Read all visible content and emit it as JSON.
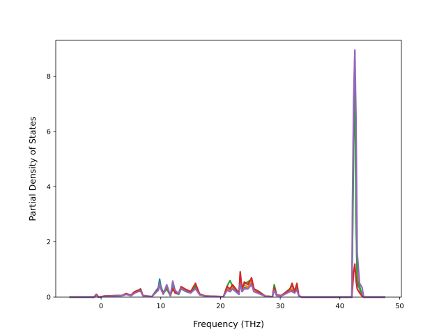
{
  "chart_data": {
    "type": "line",
    "xlabel": "Frequency (THz)",
    "ylabel": "Partial Density of States",
    "xlim": [
      -7.6,
      50.3
    ],
    "ylim": [
      0,
      9.3
    ],
    "x_ticks": [
      0,
      10,
      20,
      30,
      40,
      50
    ],
    "y_ticks": [
      0,
      2,
      4,
      6,
      8
    ],
    "grid": false,
    "legend": "none",
    "colors": [
      "#1f77b4",
      "#ff7f0e",
      "#2ca02c",
      "#d62728",
      "#9467bd"
    ],
    "series": [
      {
        "color": "#1f77b4",
        "x": [
          -5.3,
          -1.2,
          -0.8,
          -0.4,
          0.5,
          2,
          3.5,
          4.2,
          5,
          5.6,
          6.2,
          6.6,
          7,
          8.5,
          9.6,
          9.8,
          10.0,
          10.4,
          11,
          11.6,
          12,
          12.4,
          13,
          13.4,
          14.2,
          15,
          15.8,
          16.5,
          17.5,
          20.5,
          21.1,
          21.6,
          22,
          23.1,
          23.3,
          23.6,
          24,
          24.6,
          25.2,
          25.6,
          26.5,
          27.5,
          28.7,
          29,
          29.4,
          30.2,
          31.6,
          32,
          32.4,
          32.8,
          33.1,
          33.6,
          42,
          42.1,
          42.3,
          42.5,
          42.7,
          42.9,
          43.3,
          43.7,
          44,
          47.6
        ],
        "y": [
          0,
          0,
          0.07,
          0,
          0.03,
          0.04,
          0.05,
          0.1,
          0.05,
          0.15,
          0.2,
          0.25,
          0.05,
          0.02,
          0.35,
          0.65,
          0.4,
          0.15,
          0.3,
          0.05,
          0.35,
          0.15,
          0.1,
          0.3,
          0.2,
          0.15,
          0.35,
          0.1,
          0.03,
          0.02,
          0.3,
          0.2,
          0.3,
          0.1,
          0.6,
          0.2,
          0.35,
          0.3,
          0.5,
          0.2,
          0.15,
          0.03,
          0.02,
          0.3,
          0.05,
          0.05,
          0.2,
          0.25,
          0.15,
          0.3,
          0.05,
          0,
          0,
          2.0,
          6.2,
          8.7,
          3.0,
          0.5,
          0.3,
          0.05,
          0,
          0
        ]
      },
      {
        "color": "#ff7f0e",
        "x": [
          -5.3,
          -1.2,
          -0.8,
          -0.4,
          0.5,
          2,
          3.5,
          4.2,
          5,
          5.6,
          6.2,
          6.6,
          7,
          8.5,
          9.6,
          9.8,
          10.0,
          10.4,
          11,
          11.6,
          12,
          12.4,
          13,
          13.4,
          14.2,
          15,
          15.8,
          16.5,
          17.5,
          20.5,
          21.1,
          21.6,
          22,
          23.1,
          23.3,
          23.6,
          24,
          24.6,
          25.2,
          25.6,
          26.5,
          27.5,
          28.7,
          29,
          29.4,
          30.2,
          31.6,
          32,
          32.4,
          32.8,
          33.1,
          33.6,
          42,
          42.1,
          42.3,
          42.5,
          42.7,
          42.9,
          43.3,
          43.7,
          44,
          47.6
        ],
        "y": [
          0,
          0,
          0.09,
          0,
          0.04,
          0.05,
          0.06,
          0.12,
          0.06,
          0.18,
          0.24,
          0.3,
          0.06,
          0.02,
          0.3,
          0.5,
          0.35,
          0.12,
          0.35,
          0.06,
          0.4,
          0.18,
          0.12,
          0.35,
          0.25,
          0.18,
          0.45,
          0.12,
          0.04,
          0.02,
          0.35,
          0.25,
          0.35,
          0.12,
          0.85,
          0.25,
          0.45,
          0.35,
          0.6,
          0.25,
          0.18,
          0.04,
          0.02,
          0.4,
          0.06,
          0.06,
          0.25,
          0.3,
          0.2,
          0.45,
          0.06,
          0,
          0,
          2.5,
          7.0,
          8.9,
          3.5,
          0.8,
          0.35,
          0.06,
          0,
          0
        ]
      },
      {
        "color": "#2ca02c",
        "x": [
          -5.3,
          -1.2,
          -0.8,
          -0.4,
          0.5,
          2,
          3.5,
          4.2,
          5,
          5.6,
          6.2,
          6.6,
          7,
          8.5,
          9.6,
          9.8,
          10.0,
          10.4,
          11,
          11.6,
          12,
          12.4,
          13,
          13.4,
          14.2,
          15,
          15.8,
          16.5,
          17.5,
          20.5,
          21.1,
          21.6,
          22,
          23.1,
          23.3,
          23.6,
          24,
          24.6,
          25.2,
          25.6,
          26.5,
          27.5,
          28.7,
          29,
          29.4,
          30.2,
          31.6,
          32,
          32.4,
          32.8,
          33.1,
          33.6,
          42,
          42.1,
          42.3,
          42.5,
          42.7,
          42.9,
          43.3,
          43.7,
          44,
          47.6
        ],
        "y": [
          0,
          0,
          0.08,
          0,
          0.03,
          0.05,
          0.06,
          0.11,
          0.05,
          0.16,
          0.22,
          0.3,
          0.05,
          0.02,
          0.3,
          0.55,
          0.35,
          0.12,
          0.3,
          0.05,
          0.45,
          0.2,
          0.1,
          0.3,
          0.22,
          0.15,
          0.4,
          0.1,
          0.03,
          0.02,
          0.4,
          0.6,
          0.4,
          0.15,
          0.7,
          0.3,
          0.5,
          0.55,
          0.65,
          0.3,
          0.2,
          0.03,
          0.02,
          0.45,
          0.08,
          0.05,
          0.3,
          0.4,
          0.25,
          0.4,
          0.05,
          0,
          0,
          1.8,
          5.5,
          8.2,
          2.8,
          0.6,
          0.4,
          0.05,
          0,
          0
        ]
      },
      {
        "color": "#d62728",
        "x": [
          -5.3,
          -1.2,
          -0.8,
          -0.4,
          0.5,
          2,
          3.5,
          4.2,
          5,
          5.6,
          6.2,
          6.6,
          7,
          8.5,
          9.6,
          9.8,
          10.0,
          10.4,
          11,
          11.6,
          12,
          12.4,
          13,
          13.4,
          14.2,
          15,
          15.8,
          16.5,
          17.5,
          20.5,
          21.1,
          21.6,
          22,
          23.1,
          23.3,
          23.6,
          24,
          24.6,
          25.2,
          25.6,
          26.5,
          27.5,
          28.7,
          29,
          29.4,
          30.2,
          31.6,
          32,
          32.4,
          32.8,
          33.1,
          33.6,
          42,
          42.1,
          42.3,
          42.5,
          42.7,
          42.9,
          43.3,
          43.7,
          44,
          47.6
        ],
        "y": [
          0,
          0,
          0.1,
          0,
          0.04,
          0.05,
          0.06,
          0.13,
          0.07,
          0.2,
          0.25,
          0.28,
          0.06,
          0.02,
          0.28,
          0.45,
          0.3,
          0.15,
          0.4,
          0.06,
          0.3,
          0.15,
          0.15,
          0.38,
          0.28,
          0.2,
          0.5,
          0.1,
          0.04,
          0.02,
          0.38,
          0.3,
          0.45,
          0.15,
          0.92,
          0.3,
          0.55,
          0.45,
          0.7,
          0.3,
          0.18,
          0.04,
          0.02,
          0.35,
          0.07,
          0.06,
          0.28,
          0.5,
          0.2,
          0.5,
          0.06,
          0,
          0,
          0.3,
          0.9,
          1.2,
          0.6,
          0.3,
          0.15,
          0.04,
          0,
          0
        ]
      },
      {
        "color": "#9467bd",
        "x": [
          -5.3,
          -1.2,
          -0.8,
          -0.4,
          0.5,
          2,
          3.5,
          4.2,
          5,
          5.6,
          6.2,
          6.6,
          7,
          8.5,
          9.6,
          9.8,
          10.0,
          10.4,
          11,
          11.6,
          12,
          12.4,
          13,
          13.4,
          14.2,
          15,
          15.8,
          16.5,
          17.5,
          20.5,
          21.1,
          21.6,
          22,
          23.1,
          23.3,
          23.6,
          24,
          24.6,
          25.2,
          25.6,
          26.5,
          27.5,
          28.7,
          29,
          29.4,
          30.2,
          31.6,
          32,
          32.4,
          32.8,
          33.1,
          33.6,
          42,
          42.1,
          42.3,
          42.5,
          42.7,
          42.9,
          43.3,
          43.7,
          44,
          47.6
        ],
        "y": [
          0,
          0,
          0.06,
          0,
          0.03,
          0.04,
          0.05,
          0.1,
          0.05,
          0.14,
          0.2,
          0.22,
          0.05,
          0.02,
          0.25,
          0.5,
          0.3,
          0.1,
          0.45,
          0.05,
          0.58,
          0.25,
          0.12,
          0.32,
          0.2,
          0.15,
          0.3,
          0.08,
          0.03,
          0.02,
          0.25,
          0.2,
          0.3,
          0.1,
          0.5,
          0.2,
          0.3,
          0.3,
          0.45,
          0.2,
          0.12,
          0.03,
          0.02,
          0.25,
          0.05,
          0.04,
          0.2,
          0.2,
          0.15,
          0.25,
          0.05,
          0,
          0,
          3.5,
          7.2,
          8.95,
          6.5,
          1.6,
          0.5,
          0.35,
          0,
          0
        ]
      }
    ]
  }
}
